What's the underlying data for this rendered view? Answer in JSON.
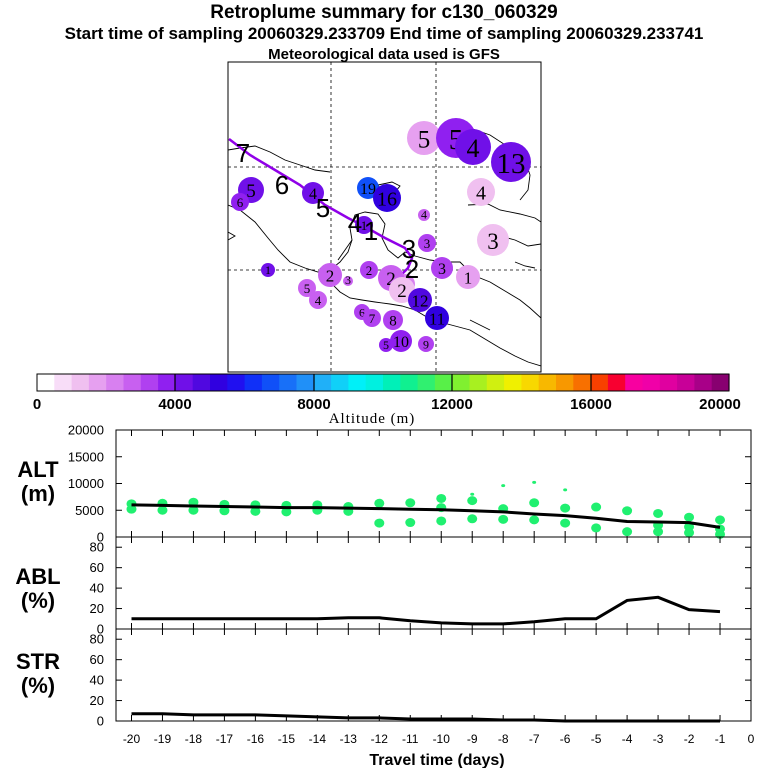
{
  "header": {
    "title": "Retroplume summary for c130_060329",
    "sampling": "Start time of sampling 20060329.233709     End time of sampling 20060329.233741",
    "met": "Meteorological data used is GFS"
  },
  "colors": {
    "scale": [
      "#ffffff",
      "#f8ddf8",
      "#f0c0f0",
      "#e6a0f0",
      "#d880f0",
      "#c860f0",
      "#b040f0",
      "#9020f0",
      "#7010e8",
      "#5008e0",
      "#3000e0",
      "#2010f0",
      "#1030f8",
      "#1050f8",
      "#1870f8",
      "#2090f8",
      "#20b0f8",
      "#10d0f8",
      "#00f0f8",
      "#00f0e0",
      "#00f0b8",
      "#10f090",
      "#30f070",
      "#58f048",
      "#80f030",
      "#a8f020",
      "#d0f010",
      "#f0f000",
      "#f8d800",
      "#f8b800",
      "#f89800",
      "#f87000",
      "#f84000",
      "#f80030",
      "#f800a0",
      "#f000a8",
      "#e000a0",
      "#c80098",
      "#a80088",
      "#880070"
    ],
    "curve": "#000000",
    "scatter": "#20f070",
    "track": "#9000e8"
  },
  "map": {
    "track_labels": [
      "7",
      "6",
      "5",
      "4",
      "1",
      "2",
      "3"
    ],
    "plumes": [
      {
        "label": "5",
        "alt": 1500,
        "r": 17
      },
      {
        "label": "5",
        "alt": 3900,
        "r": 20
      },
      {
        "label": "4",
        "alt": 4200,
        "r": 18
      },
      {
        "label": "13",
        "alt": 4300,
        "r": 20
      },
      {
        "label": "5",
        "alt": 4200,
        "r": 13
      },
      {
        "label": "6",
        "alt": 3500,
        "r": 9
      },
      {
        "label": "4",
        "alt": 4300,
        "r": 11
      },
      {
        "label": "19",
        "alt": 6700,
        "r": 11
      },
      {
        "label": "16",
        "alt": 5300,
        "r": 14
      },
      {
        "label": "4",
        "alt": 1300,
        "r": 14
      },
      {
        "label": "4",
        "alt": 2600,
        "r": 6
      },
      {
        "label": "1",
        "alt": 4300,
        "r": 9
      },
      {
        "label": "3",
        "alt": 3100,
        "r": 9
      },
      {
        "label": "3",
        "alt": 1400,
        "r": 16
      },
      {
        "label": "1",
        "alt": 4300,
        "r": 7
      },
      {
        "label": "2",
        "alt": 2700,
        "r": 12
      },
      {
        "label": "3",
        "alt": 2700,
        "r": 5
      },
      {
        "label": "2",
        "alt": 3000,
        "r": 9
      },
      {
        "label": "3",
        "alt": 3200,
        "r": 11
      },
      {
        "label": "1",
        "alt": 1500,
        "r": 12
      },
      {
        "label": "1",
        "alt": 2200,
        "r": 10
      },
      {
        "label": "2",
        "alt": 2800,
        "r": 13
      },
      {
        "label": "2",
        "alt": 1300,
        "r": 13
      },
      {
        "label": "5",
        "alt": 2900,
        "r": 9
      },
      {
        "label": "4",
        "alt": 2800,
        "r": 9
      },
      {
        "label": "12",
        "alt": 4700,
        "r": 12
      },
      {
        "label": "6",
        "alt": 3000,
        "r": 8
      },
      {
        "label": "7",
        "alt": 3200,
        "r": 9
      },
      {
        "label": "8",
        "alt": 3300,
        "r": 10
      },
      {
        "label": "11",
        "alt": 5000,
        "r": 12
      },
      {
        "label": "5",
        "alt": 3900,
        "r": 7
      },
      {
        "label": "10",
        "alt": 3800,
        "r": 11
      },
      {
        "label": "9",
        "alt": 3200,
        "r": 8
      }
    ]
  },
  "colorbar": {
    "ticks": [
      "0",
      "4000",
      "8000",
      "12000",
      "16000",
      "20000"
    ],
    "label": "Altitude (m)"
  },
  "chart_data": [
    {
      "type": "line",
      "panel": "ALT",
      "ylabel_line1": "ALT",
      "ylabel_line2": "(m)",
      "x": [
        -20,
        -19,
        -18,
        -17,
        -16,
        -15,
        -14,
        -13,
        -12,
        -11,
        -10,
        -9,
        -8,
        -7,
        -6,
        -5,
        -4,
        -3,
        -2,
        -1
      ],
      "values": [
        6000,
        5900,
        5800,
        5700,
        5600,
        5500,
        5500,
        5400,
        5300,
        5200,
        5100,
        4900,
        4700,
        4300,
        4000,
        3500,
        2900,
        2800,
        2700,
        1800
      ],
      "ylim": [
        0,
        20000
      ],
      "yticks": [
        "0",
        "5000",
        "10000",
        "15000",
        "20000"
      ],
      "scatter": [
        {
          "x": -20,
          "y": [
            6200,
            5200
          ]
        },
        {
          "x": -19,
          "y": [
            6300,
            5000
          ]
        },
        {
          "x": -18,
          "y": [
            6500,
            5000
          ]
        },
        {
          "x": -17,
          "y": [
            6100,
            4900
          ]
        },
        {
          "x": -16,
          "y": [
            6000,
            4800
          ]
        },
        {
          "x": -15,
          "y": [
            5900,
            4700
          ]
        },
        {
          "x": -14,
          "y": [
            6000,
            5000
          ]
        },
        {
          "x": -13,
          "y": [
            5700,
            4800
          ]
        },
        {
          "x": -12,
          "y": [
            6300,
            2600
          ]
        },
        {
          "x": -11,
          "y": [
            6400,
            2700
          ]
        },
        {
          "x": -10,
          "y": [
            7200,
            5500,
            3000
          ]
        },
        {
          "x": -9,
          "y": [
            8000,
            6800,
            3400
          ]
        },
        {
          "x": -8,
          "y": [
            9600,
            5300,
            3300
          ]
        },
        {
          "x": -7,
          "y": [
            10200,
            6400,
            3200
          ]
        },
        {
          "x": -6,
          "y": [
            8800,
            5400,
            2600
          ]
        },
        {
          "x": -5,
          "y": [
            5600,
            1700
          ]
        },
        {
          "x": -4,
          "y": [
            4900,
            1000
          ]
        },
        {
          "x": -3,
          "y": [
            4400,
            2200,
            1000
          ]
        },
        {
          "x": -2,
          "y": [
            3700,
            1900,
            800
          ]
        },
        {
          "x": -1,
          "y": [
            3200,
            1500,
            500
          ]
        }
      ]
    },
    {
      "type": "line",
      "panel": "ABL",
      "ylabel_line1": "ABL",
      "ylabel_line2": "(%)",
      "x": [
        -20,
        -19,
        -18,
        -17,
        -16,
        -15,
        -14,
        -13,
        -12,
        -11,
        -10,
        -9,
        -8,
        -7,
        -6,
        -5,
        -4,
        -3,
        -2,
        -1
      ],
      "values": [
        10,
        10,
        10,
        10,
        10,
        10,
        10,
        11,
        11,
        8,
        6,
        5,
        5,
        7,
        10,
        10,
        28,
        31,
        19,
        17
      ],
      "ylim": [
        0,
        90
      ],
      "yticks": [
        "0",
        "20",
        "40",
        "60",
        "80"
      ]
    },
    {
      "type": "line",
      "panel": "STR",
      "ylabel_line1": "STR",
      "ylabel_line2": "(%)",
      "x": [
        -20,
        -19,
        -18,
        -17,
        -16,
        -15,
        -14,
        -13,
        -12,
        -11,
        -10,
        -9,
        -8,
        -7,
        -6,
        -5,
        -4,
        -3,
        -2,
        -1
      ],
      "values": [
        7,
        7,
        6,
        6,
        6,
        5,
        4,
        3,
        3,
        2,
        2,
        2,
        1,
        1,
        0,
        0,
        0,
        0,
        0,
        0
      ],
      "ylim": [
        0,
        90
      ],
      "yticks": [
        "0",
        "20",
        "40",
        "60",
        "80"
      ]
    }
  ],
  "xaxis": {
    "ticks": [
      "-20",
      "-19",
      "-18",
      "-17",
      "-16",
      "-15",
      "-14",
      "-13",
      "-12",
      "-11",
      "-10",
      "-9",
      "-8",
      "-7",
      "-6",
      "-5",
      "-4",
      "-3",
      "-2",
      "-1",
      "0"
    ],
    "label": "Travel time (days)"
  }
}
